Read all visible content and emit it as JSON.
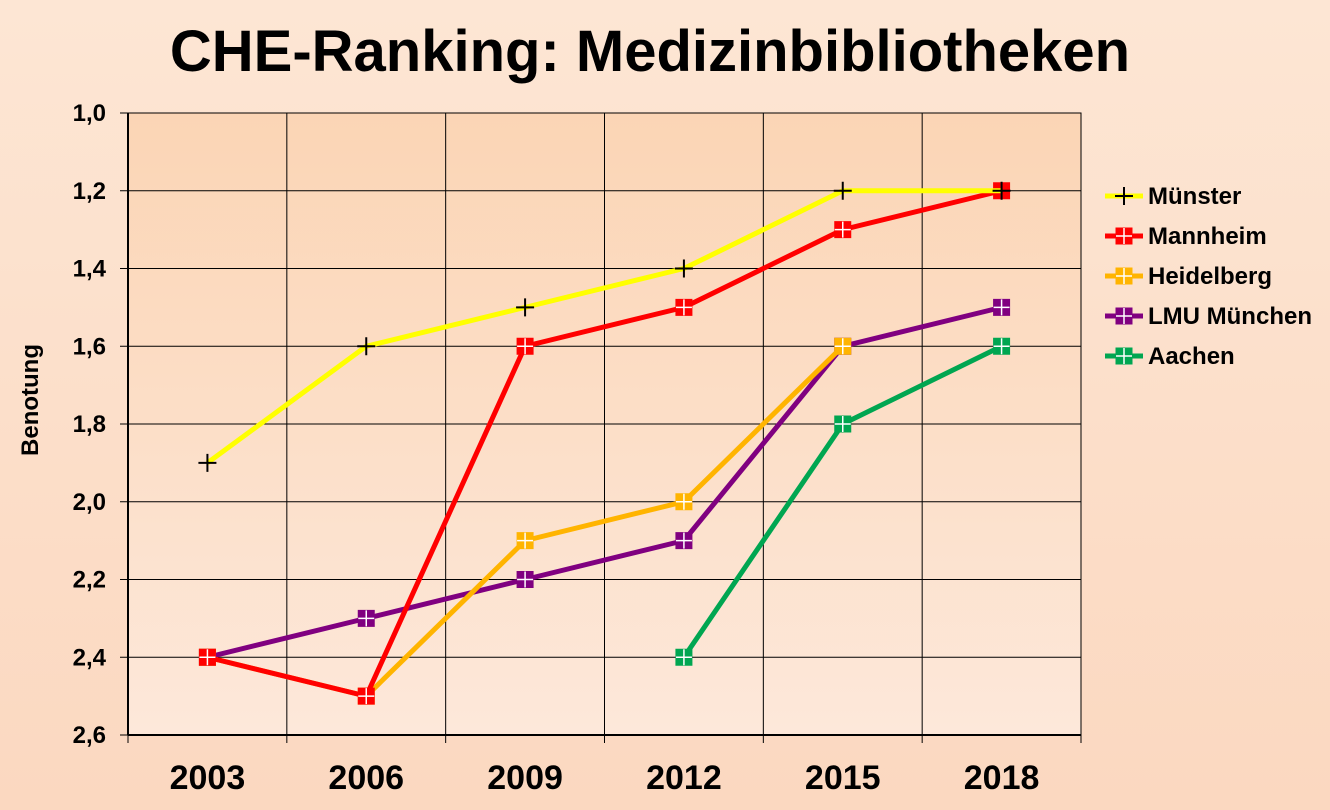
{
  "chart_data": {
    "type": "line",
    "title": "CHE-Ranking: Medizinbibliotheken",
    "ylabel": "Benotung",
    "xlabel": "",
    "categories": [
      "2003",
      "2006",
      "2009",
      "2012",
      "2015",
      "2018"
    ],
    "y_tick_labels": [
      "1,0",
      "1,2",
      "1,4",
      "1,6",
      "1,8",
      "2,0",
      "2,2",
      "2,4",
      "2,6"
    ],
    "ylim": [
      1.0,
      2.6
    ],
    "y_inverted": true,
    "grid": true,
    "legend_position": "right",
    "series": [
      {
        "name": "Münster",
        "color": "#ffff00",
        "marker": "plus",
        "values": [
          1.9,
          1.6,
          1.5,
          1.4,
          1.2,
          1.2
        ]
      },
      {
        "name": "Mannheim",
        "color": "#ff0000",
        "marker": "square-plus",
        "values": [
          2.4,
          2.5,
          1.6,
          1.5,
          1.3,
          1.2
        ]
      },
      {
        "name": "Heidelberg",
        "color": "#ffb400",
        "marker": "square-plus",
        "values": [
          2.4,
          2.5,
          2.1,
          2.0,
          1.6,
          null
        ]
      },
      {
        "name": "LMU München",
        "color": "#800080",
        "marker": "square-plus",
        "values": [
          2.4,
          2.3,
          2.2,
          2.1,
          1.6,
          1.5
        ]
      },
      {
        "name": "Aachen",
        "color": "#00a651",
        "marker": "square-plus",
        "values": [
          null,
          null,
          null,
          2.4,
          1.8,
          1.6
        ]
      }
    ],
    "plot_background": "#fbd5b5"
  }
}
